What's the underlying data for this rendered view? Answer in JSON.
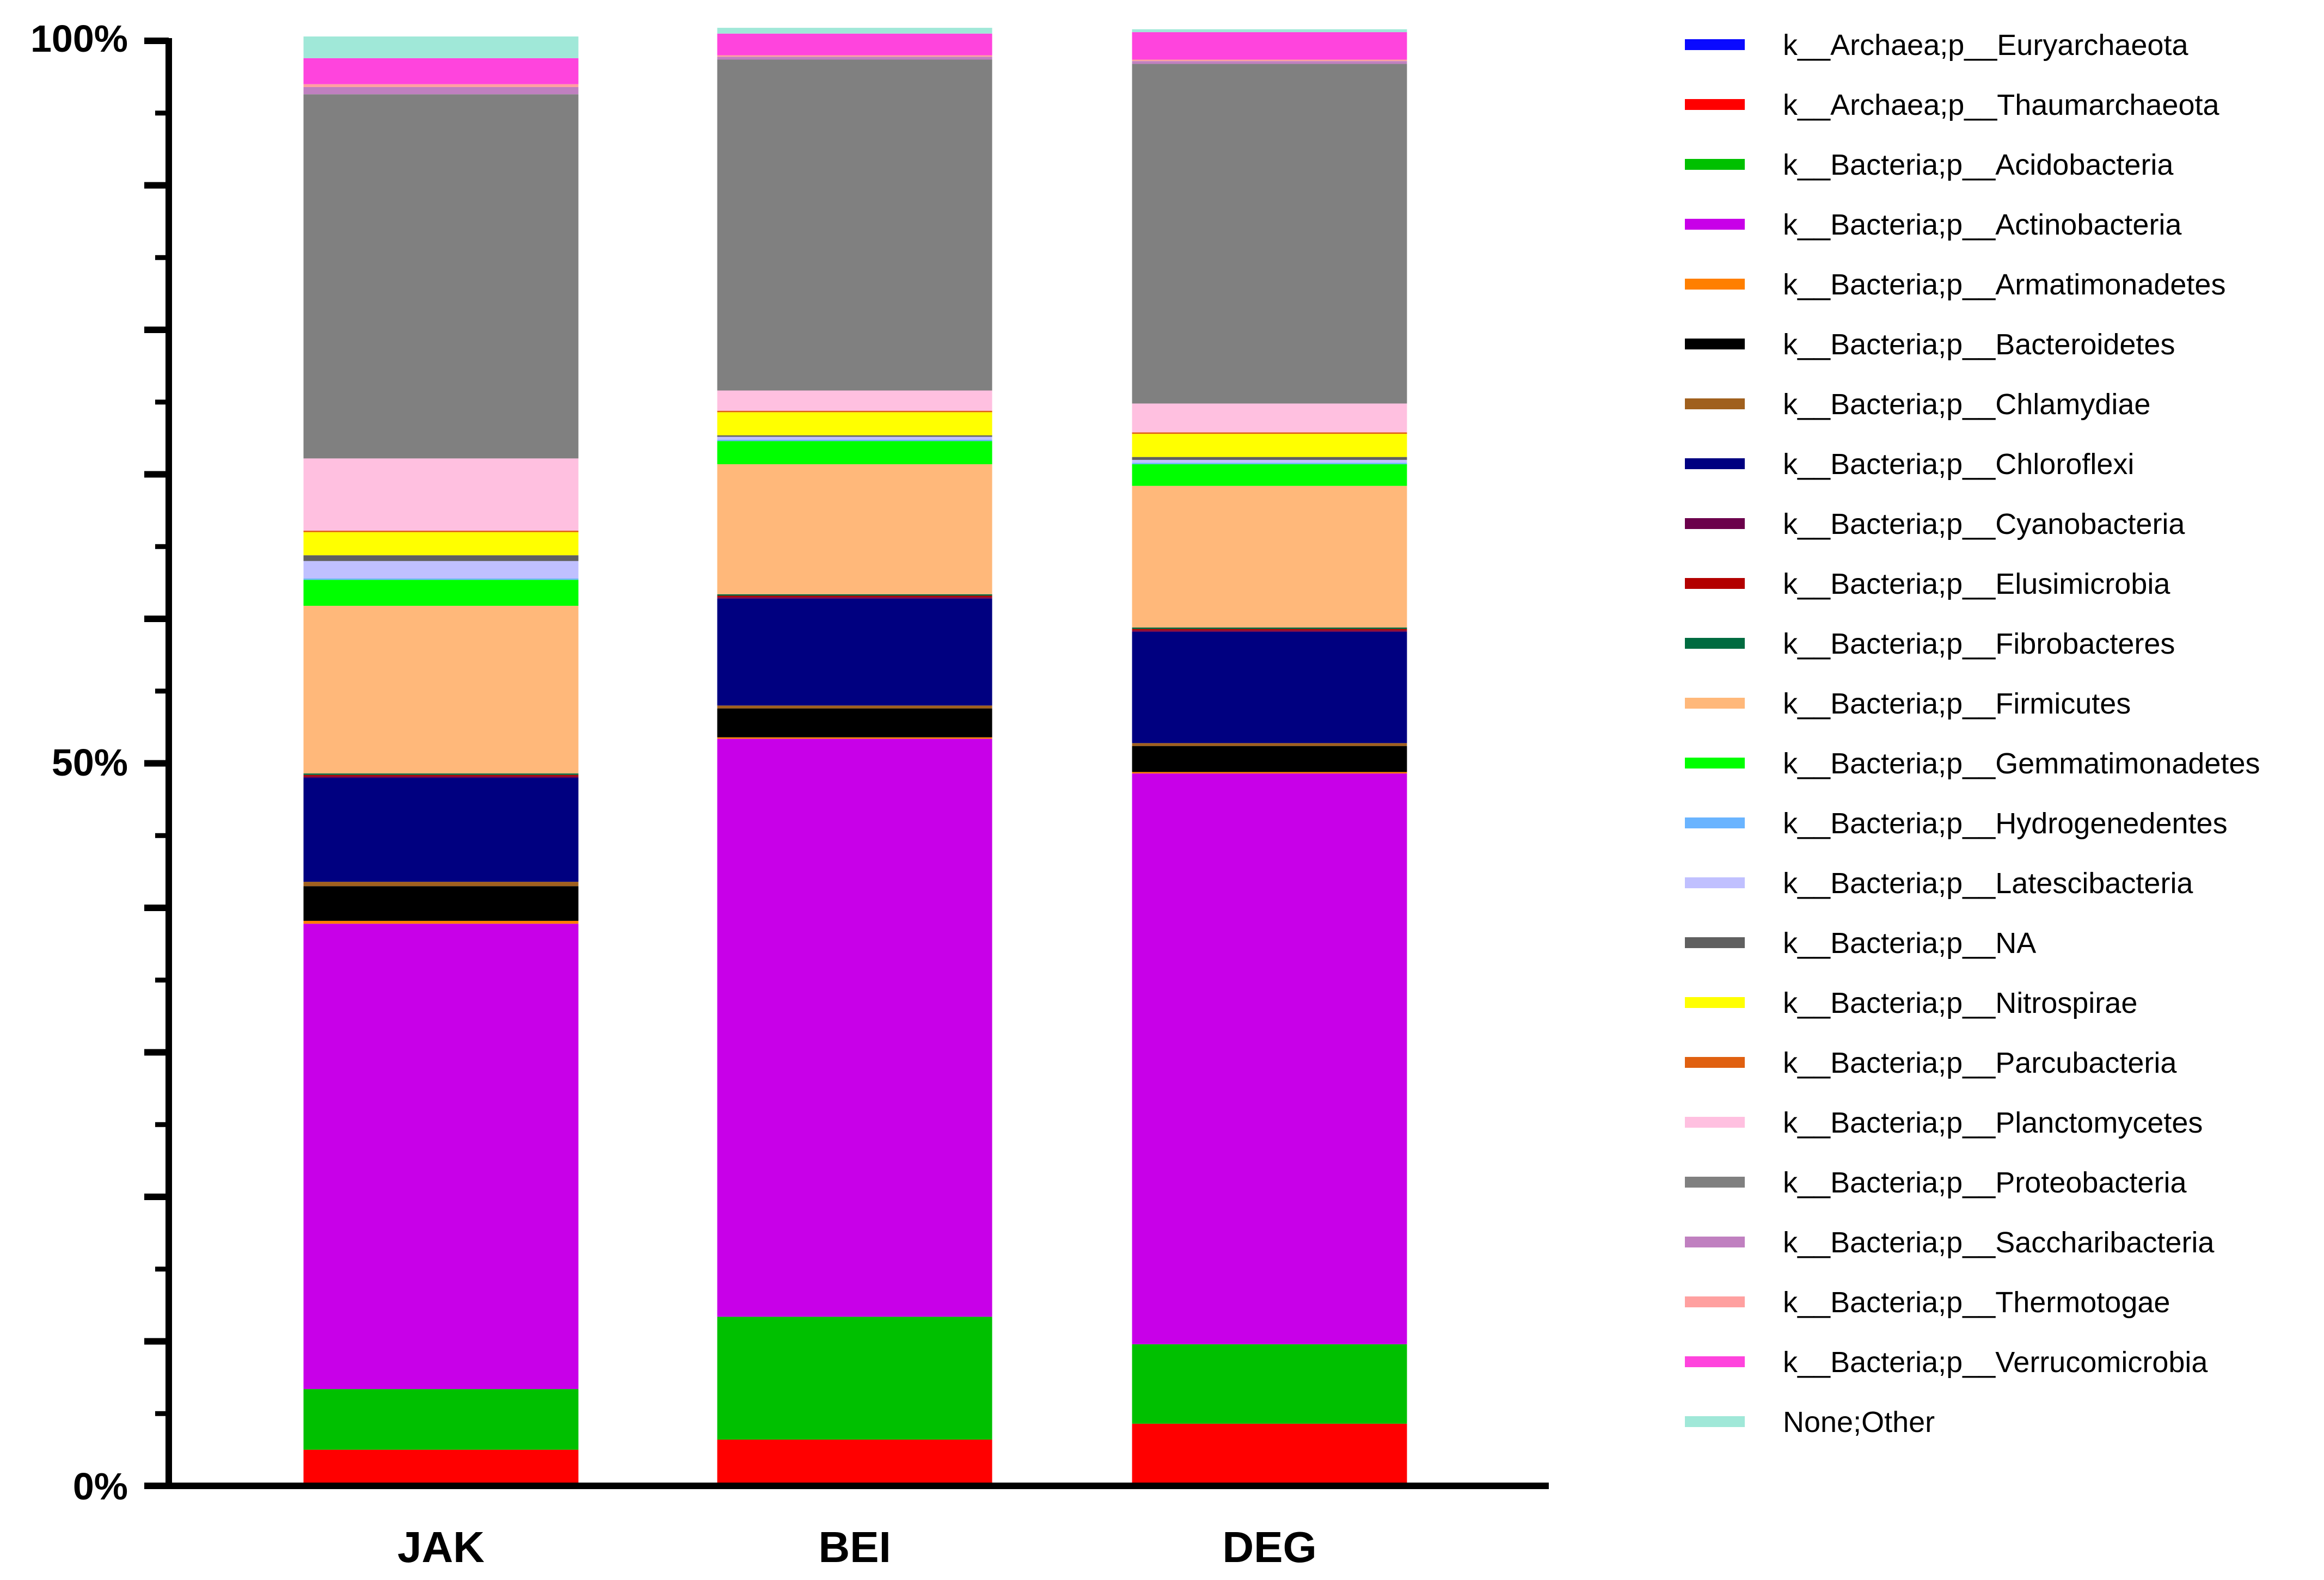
{
  "chart_data": {
    "type": "bar",
    "stacked": true,
    "title": "",
    "xlabel": "",
    "ylabel": "",
    "ylim": [
      0,
      100
    ],
    "y_tick_labels": [
      "0%",
      "50%",
      "100%"
    ],
    "categories": [
      "JAK",
      "BEI",
      "DEG"
    ],
    "legend_position": "right",
    "series": [
      {
        "name": "k__Archaea;p__Euryarchaeota",
        "color": "#0a0aff",
        "values": [
          0.1,
          0.1,
          0.1
        ]
      },
      {
        "name": "k__Archaea;p__Thaumarchaeota",
        "color": "#ff0000",
        "values": [
          2.4,
          3.1,
          4.2
        ]
      },
      {
        "name": "k__Bacteria;p__Acidobacteria",
        "color": "#00c000",
        "values": [
          4.2,
          8.5,
          5.5
        ]
      },
      {
        "name": "k__Bacteria;p__Actinobacteria",
        "color": "#c800e8",
        "values": [
          32.2,
          40.0,
          39.5
        ]
      },
      {
        "name": "k__Bacteria;p__Armatimonadetes",
        "color": "#ff7f00",
        "values": [
          0.2,
          0.1,
          0.1
        ]
      },
      {
        "name": "k__Bacteria;p__Bacteroidetes",
        "color": "#000000",
        "values": [
          2.4,
          2.0,
          1.8
        ]
      },
      {
        "name": "k__Bacteria;p__Chlamydiae",
        "color": "#a0601e",
        "values": [
          0.3,
          0.2,
          0.2
        ]
      },
      {
        "name": "k__Bacteria;p__Chloroflexi",
        "color": "#000080",
        "values": [
          7.2,
          7.4,
          7.7
        ]
      },
      {
        "name": "k__Bacteria;p__Cyanobacteria",
        "color": "#6b004b",
        "values": [
          0.1,
          0.1,
          0.1
        ]
      },
      {
        "name": "k__Bacteria;p__Elusimicrobia",
        "color": "#b30000",
        "values": [
          0.1,
          0.1,
          0.1
        ]
      },
      {
        "name": "k__Bacteria;p__Fibrobacteres",
        "color": "#006b40",
        "values": [
          0.1,
          0.1,
          0.1
        ]
      },
      {
        "name": "k__Bacteria;p__Firmicutes",
        "color": "#ffb87a",
        "values": [
          11.6,
          9.0,
          9.8
        ]
      },
      {
        "name": "k__Bacteria;p__Gemmatimonadetes",
        "color": "#00ff00",
        "values": [
          1.8,
          1.6,
          1.5
        ]
      },
      {
        "name": "k__Bacteria;p__Hydrogenedentes",
        "color": "#6ab4ff",
        "values": [
          0.1,
          0.1,
          0.1
        ]
      },
      {
        "name": "k__Bacteria;p__Latescibacteria",
        "color": "#c0c0ff",
        "values": [
          1.2,
          0.2,
          0.2
        ]
      },
      {
        "name": "k__Bacteria;p__NA",
        "color": "#606060",
        "values": [
          0.4,
          0.1,
          0.2
        ]
      },
      {
        "name": "k__Bacteria;p__Nitrospirae",
        "color": "#ffff00",
        "values": [
          1.6,
          1.6,
          1.6
        ]
      },
      {
        "name": "k__Bacteria;p__Parcubacteria",
        "color": "#e06010",
        "values": [
          0.1,
          0.1,
          0.1
        ]
      },
      {
        "name": "k__Bacteria;p__Planctomycetes",
        "color": "#ffc0e0",
        "values": [
          5.0,
          1.4,
          2.0
        ]
      },
      {
        "name": "k__Bacteria;p__Proteobacteria",
        "color": "#808080",
        "values": [
          25.2,
          22.9,
          23.5
        ]
      },
      {
        "name": "k__Bacteria;p__Saccharibacteria",
        "color": "#c080c0",
        "values": [
          0.5,
          0.2,
          0.2
        ]
      },
      {
        "name": "k__Bacteria;p__Thermotogae",
        "color": "#ffa0a0",
        "values": [
          0.2,
          0.1,
          0.1
        ]
      },
      {
        "name": "k__Bacteria;p__Verrucomicrobia",
        "color": "#ff44dd",
        "values": [
          1.8,
          1.5,
          1.9
        ]
      },
      {
        "name": "None;Other",
        "color": "#a0e8d8",
        "values": [
          1.5,
          0.4,
          0.2
        ]
      }
    ]
  }
}
